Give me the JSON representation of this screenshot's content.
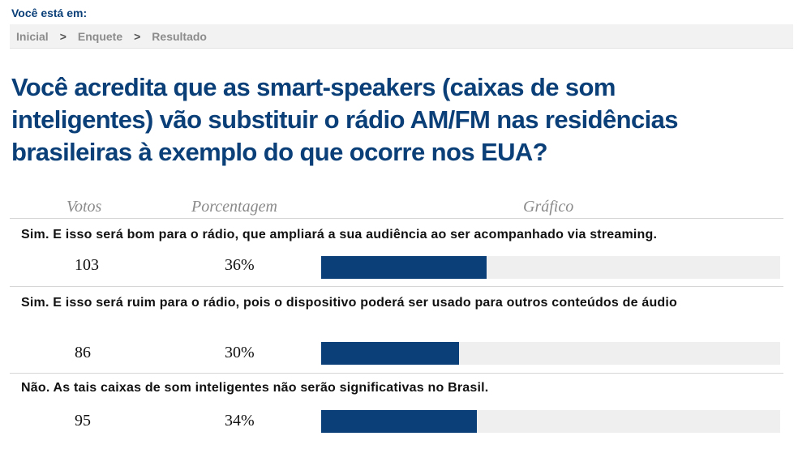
{
  "header": {
    "you_are_here": "Você está em:"
  },
  "breadcrumb": [
    {
      "label": "Inicial"
    },
    {
      "label": "Enquete"
    },
    {
      "label": "Resultado"
    }
  ],
  "breadcrumb_separator": ">",
  "poll": {
    "question": "Você acredita que as smart-speakers (caixas de som inteligentes) vão substituir o rádio AM/FM nas residências brasileiras à exemplo do que ocorre nos EUA?",
    "columns": {
      "votes": "Votos",
      "percent": "Porcentagem",
      "chart": "Gráfico"
    },
    "options": [
      {
        "text": "Sim. E isso será bom para o rádio, que ampliará a sua audiência ao ser acompanhado via streaming.",
        "votes": "103",
        "percent": "36%",
        "fraction": 0.36
      },
      {
        "text": "Sim. E isso será ruim para o rádio, pois o dispositivo poderá ser usado para outros conteúdos de áudio",
        "votes": "86",
        "percent": "30%",
        "fraction": 0.3
      },
      {
        "text": "Não. As tais caixas de som inteligentes não serão significativas no Brasil.",
        "votes": "95",
        "percent": "34%",
        "fraction": 0.34
      }
    ]
  },
  "colors": {
    "accent": "#0a3f78",
    "bar_track": "#efefef"
  }
}
